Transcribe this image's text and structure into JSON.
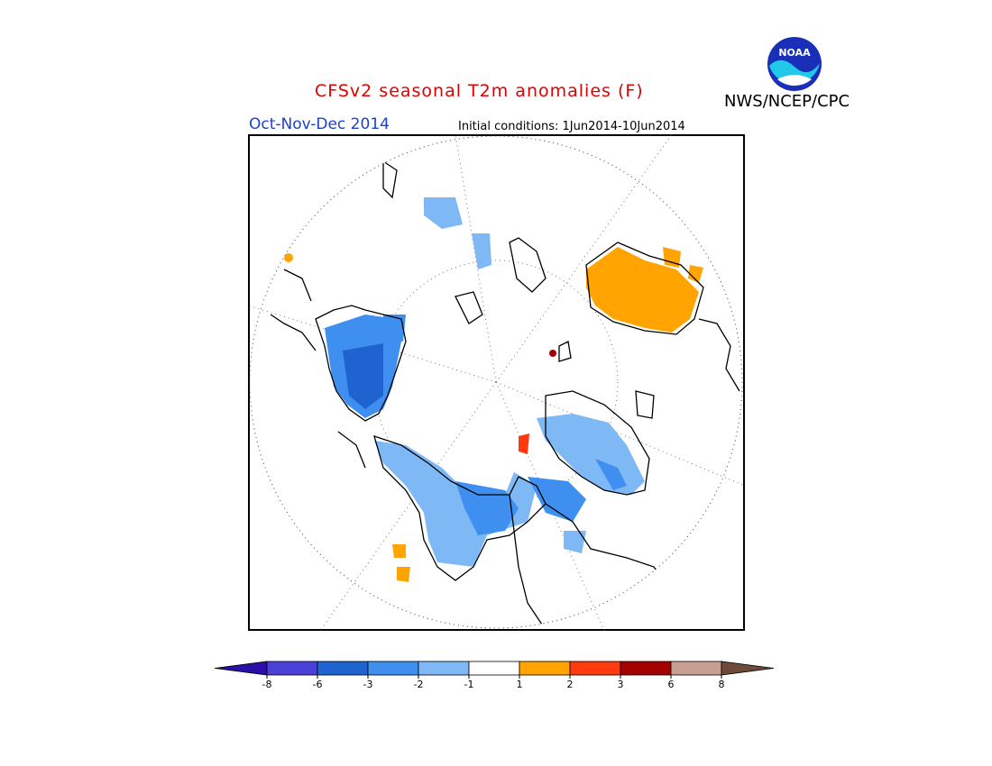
{
  "header": {
    "title": "CFSv2 seasonal T2m anomalies (F)",
    "organization": "NWS/NCEP/CPC",
    "logo_text": "NOAA",
    "season": "Oct-Nov-Dec 2014",
    "initial_conditions": "Initial conditions: 1Jun2014-10Jun2014"
  },
  "map": {
    "projection": "north polar stereographic",
    "variable": "2m temperature anomaly",
    "units": "F"
  },
  "legend": {
    "bins": [
      {
        "color": "#2a10a8"
      },
      {
        "color": "#4a3fd6"
      },
      {
        "color": "#1e63d0"
      },
      {
        "color": "#3f8ff0"
      },
      {
        "color": "#7eb8f5"
      },
      {
        "color": "#ffffff"
      },
      {
        "color": "#ffa400"
      },
      {
        "color": "#ff3a0f"
      },
      {
        "color": "#a30000"
      },
      {
        "color": "#c8a092"
      },
      {
        "color": "#6e4a3a"
      }
    ],
    "tick_labels": [
      "-8",
      "-6",
      "-3",
      "-2",
      "-1",
      "1",
      "2",
      "3",
      "6",
      "8"
    ]
  }
}
